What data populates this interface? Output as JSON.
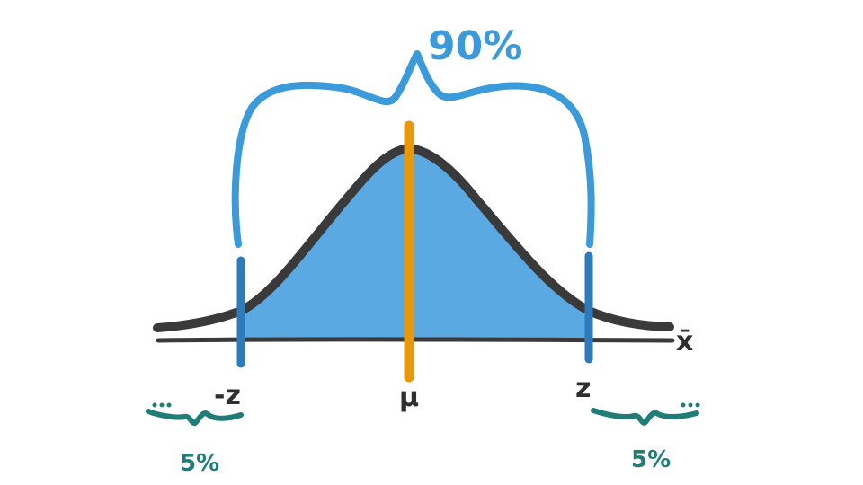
{
  "labels": {
    "center_pct": "90%",
    "left_z": "-z",
    "right_z": "z",
    "mean": "μ",
    "axis_var": "x̄",
    "left_tail_pct": "5%",
    "right_tail_pct": "5%"
  },
  "colors": {
    "curve": "#3a3a3a",
    "fill": "#5aa9e2",
    "brace": "#3b9ad9",
    "bound_lines": "#2b7bbd",
    "mean_line": "#e7980c",
    "tail_braces": "#1f7c76"
  }
}
